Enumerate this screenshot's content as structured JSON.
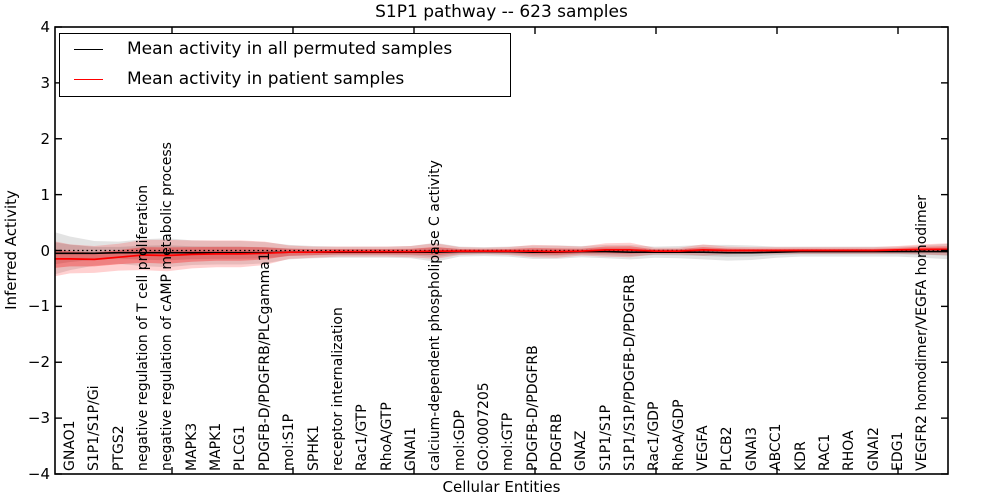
{
  "title": "S1P1 pathway -- 623 samples",
  "legend": {
    "items": [
      {
        "label": "Mean activity in all permuted samples",
        "color": "#000000"
      },
      {
        "label": "Mean activity in patient samples",
        "color": "#ff0000"
      }
    ]
  },
  "colors": {
    "permuted_line": "#000000",
    "patient_line": "#ff0000",
    "permuted_band": "#bfbfbf",
    "patient_band": "#f4a0a0",
    "zero_line": "#000000"
  },
  "chart_data": {
    "type": "line",
    "title": "S1P1 pathway -- 623 samples",
    "xlabel": "Cellular Entities",
    "ylabel": "Inferred Activity",
    "ylim": [
      -4,
      4
    ],
    "yticks": [
      -4,
      -3,
      -2,
      -1,
      0,
      1,
      2,
      3,
      4
    ],
    "grid": false,
    "legend_position": "upper left",
    "zero_reference_line": {
      "y": 0,
      "style": "dotted",
      "color": "#000000"
    },
    "band_inner_ratio": 0.52,
    "categories": [
      "GNAO1",
      "S1P1/S1P/Gi",
      "PTGS2",
      "negative regulation of T cell proliferation",
      "negative regulation of cAMP metabolic process",
      "MAPK3",
      "MAPK1",
      "PLCG1",
      "PDGFB-D/PDGFRB/PLCgamma1",
      "mol:S1P",
      "SPHK1",
      "receptor internalization",
      "Rac1/GTP",
      "RhoA/GTP",
      "GNAI1",
      "calcium-dependent phospholipase C activity",
      "mol:GDP",
      "GO:0007205",
      "mol:GTP",
      "PDGFB-D/PDGFRB",
      "PDGFRB",
      "GNAZ",
      "S1P1/S1P",
      "S1P1/S1P/PDGFB-D/PDGFRB",
      "Rac1/GDP",
      "RhoA/GDP",
      "VEGFA",
      "PLCB2",
      "GNAI3",
      "ABCC1",
      "KDR",
      "RAC1",
      "RHOA",
      "GNAI2",
      "EDG1",
      "VEGFR2 homodimer/VEGFA homodimer"
    ],
    "series": [
      {
        "name": "Mean activity in all permuted samples",
        "color": "#000000",
        "values": [
          -0.05,
          -0.05,
          -0.04,
          -0.04,
          -0.04,
          -0.04,
          -0.04,
          -0.04,
          -0.04,
          -0.03,
          -0.03,
          -0.03,
          -0.03,
          -0.03,
          -0.03,
          -0.03,
          -0.02,
          -0.02,
          -0.02,
          -0.03,
          -0.03,
          -0.02,
          -0.02,
          -0.03,
          -0.03,
          -0.03,
          -0.03,
          -0.04,
          -0.04,
          -0.03,
          -0.02,
          -0.02,
          -0.02,
          -0.02,
          -0.02,
          -0.02
        ],
        "band_halfwidth": [
          0.3,
          0.22,
          0.2,
          0.24,
          0.26,
          0.22,
          0.21,
          0.21,
          0.19,
          0.13,
          0.11,
          0.1,
          0.1,
          0.1,
          0.11,
          0.17,
          0.09,
          0.08,
          0.09,
          0.12,
          0.12,
          0.1,
          0.12,
          0.13,
          0.1,
          0.11,
          0.13,
          0.14,
          0.13,
          0.1,
          0.09,
          0.09,
          0.09,
          0.09,
          0.09,
          0.11
        ]
      },
      {
        "name": "Mean activity in patient samples",
        "color": "#ff0000",
        "values": [
          -0.15,
          -0.16,
          -0.12,
          -0.08,
          -0.09,
          -0.07,
          -0.06,
          -0.06,
          -0.05,
          -0.03,
          -0.03,
          -0.02,
          -0.02,
          -0.02,
          -0.02,
          -0.01,
          -0.01,
          -0.01,
          -0.01,
          -0.01,
          -0.02,
          -0.01,
          0.01,
          0.01,
          -0.01,
          -0.01,
          0.01,
          0.0,
          0.0,
          0.0,
          0.0,
          0.0,
          0.0,
          0.0,
          0.01,
          0.02
        ],
        "band_halfwidth": [
          0.26,
          0.24,
          0.24,
          0.27,
          0.28,
          0.25,
          0.24,
          0.24,
          0.21,
          0.12,
          0.1,
          0.09,
          0.09,
          0.09,
          0.1,
          0.14,
          0.07,
          0.06,
          0.07,
          0.11,
          0.11,
          0.08,
          0.12,
          0.13,
          0.06,
          0.06,
          0.1,
          0.07,
          0.06,
          0.06,
          0.06,
          0.06,
          0.06,
          0.06,
          0.07,
          0.09
        ]
      }
    ]
  }
}
